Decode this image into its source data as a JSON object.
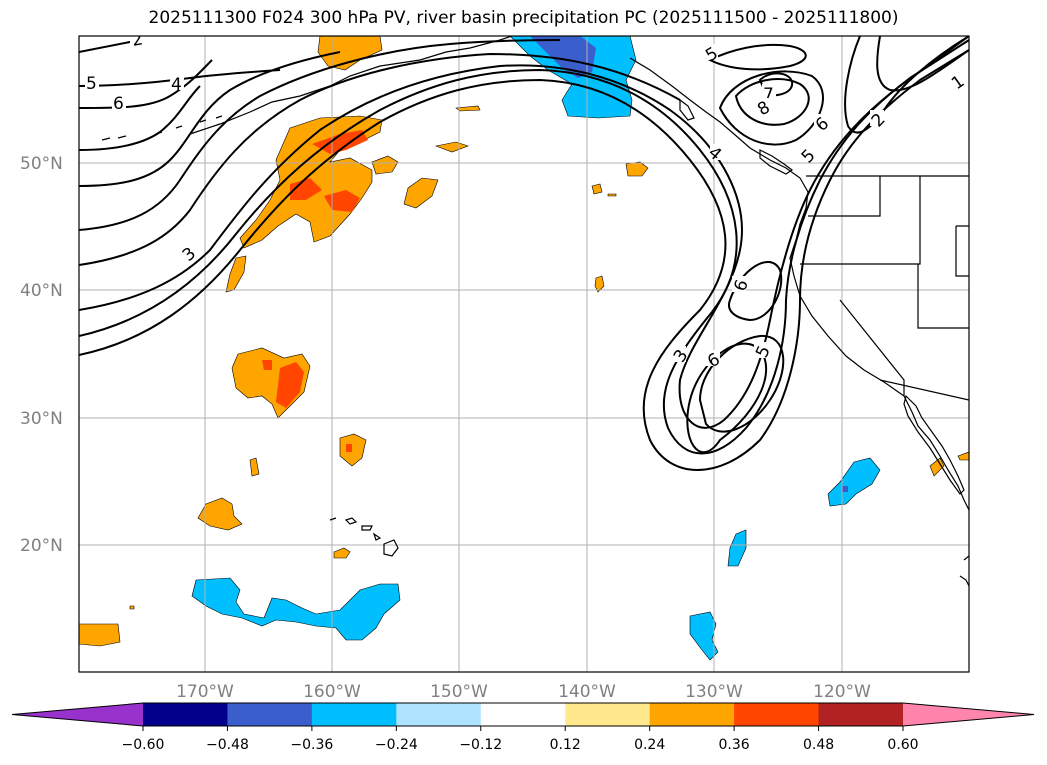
{
  "title": "2025111300 F024 300 hPa PV, river basin precipitation PC (2025111500 - 2025111800)",
  "latitude_labels": [
    "50°N",
    "40°N",
    "30°N",
    "20°N"
  ],
  "longitude_labels": [
    "170°W",
    "160°W",
    "150°W",
    "140°W",
    "130°W",
    "120°W"
  ],
  "pv_contour_labels": [
    "2",
    "5",
    "4",
    "6",
    "3",
    "5",
    "7",
    "8",
    "6",
    "5",
    "4",
    "1",
    "2",
    "6",
    "6",
    "3",
    "5"
  ],
  "colorbar": {
    "ticks": [
      "−0.60",
      "−0.48",
      "−0.36",
      "−0.24",
      "−0.12",
      "0.12",
      "0.24",
      "0.36",
      "0.48",
      "0.60"
    ],
    "colors": [
      "#9932CC",
      "#00008B",
      "#3A5FCD",
      "#00BFFF",
      "#AEE4FF",
      "#FFFFFF",
      "#FFE98C",
      "#FFA500",
      "#FF4500",
      "#B22222",
      "#FF85AC"
    ]
  }
}
